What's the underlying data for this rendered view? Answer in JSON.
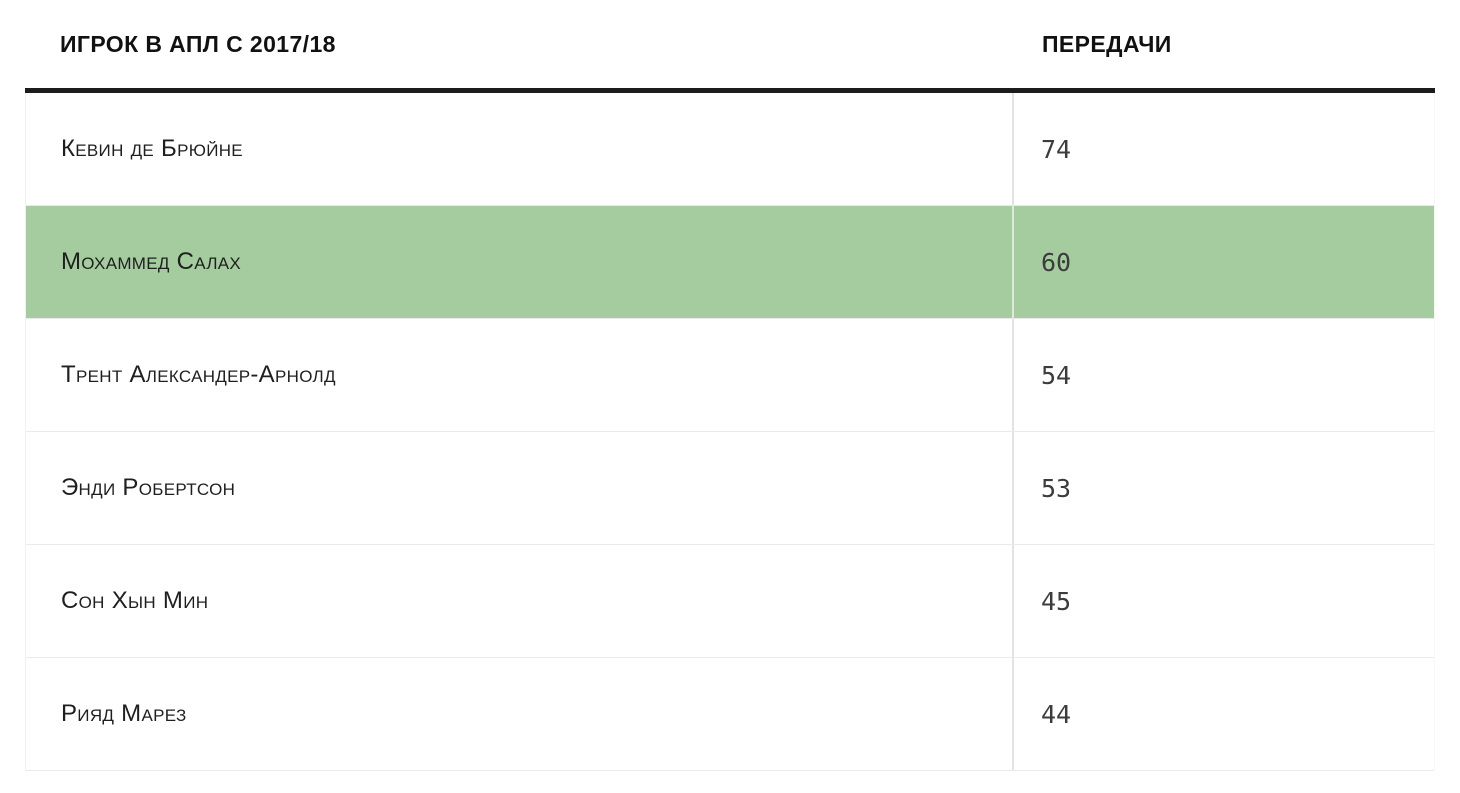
{
  "colors": {
    "highlight": "#a5cc9e",
    "header_border": "#1c1c1c",
    "row_divider": "#eaeaea"
  },
  "chart_data": {
    "type": "table",
    "title": "ИГРОК В АПЛ С 2017/18 — ПЕРЕДАЧИ",
    "columns": [
      "ИГРОК В АПЛ С 2017/18",
      "ПЕРЕДАЧИ"
    ],
    "rows": [
      {
        "player": "Кевин де Брюйне",
        "assists": "74"
      },
      {
        "player": "Мохаммед Салах",
        "assists": "60"
      },
      {
        "player": "Трент Александер-Арнолд",
        "assists": "54"
      },
      {
        "player": "Энди Робертсон",
        "assists": "53"
      },
      {
        "player": "Сон Хын Мин",
        "assists": "45"
      },
      {
        "player": "Рияд Марез",
        "assists": "44"
      }
    ],
    "highlighted_row_index": 1,
    "layout": {
      "legend": false,
      "grid": "horizontal-row-dividers"
    }
  }
}
